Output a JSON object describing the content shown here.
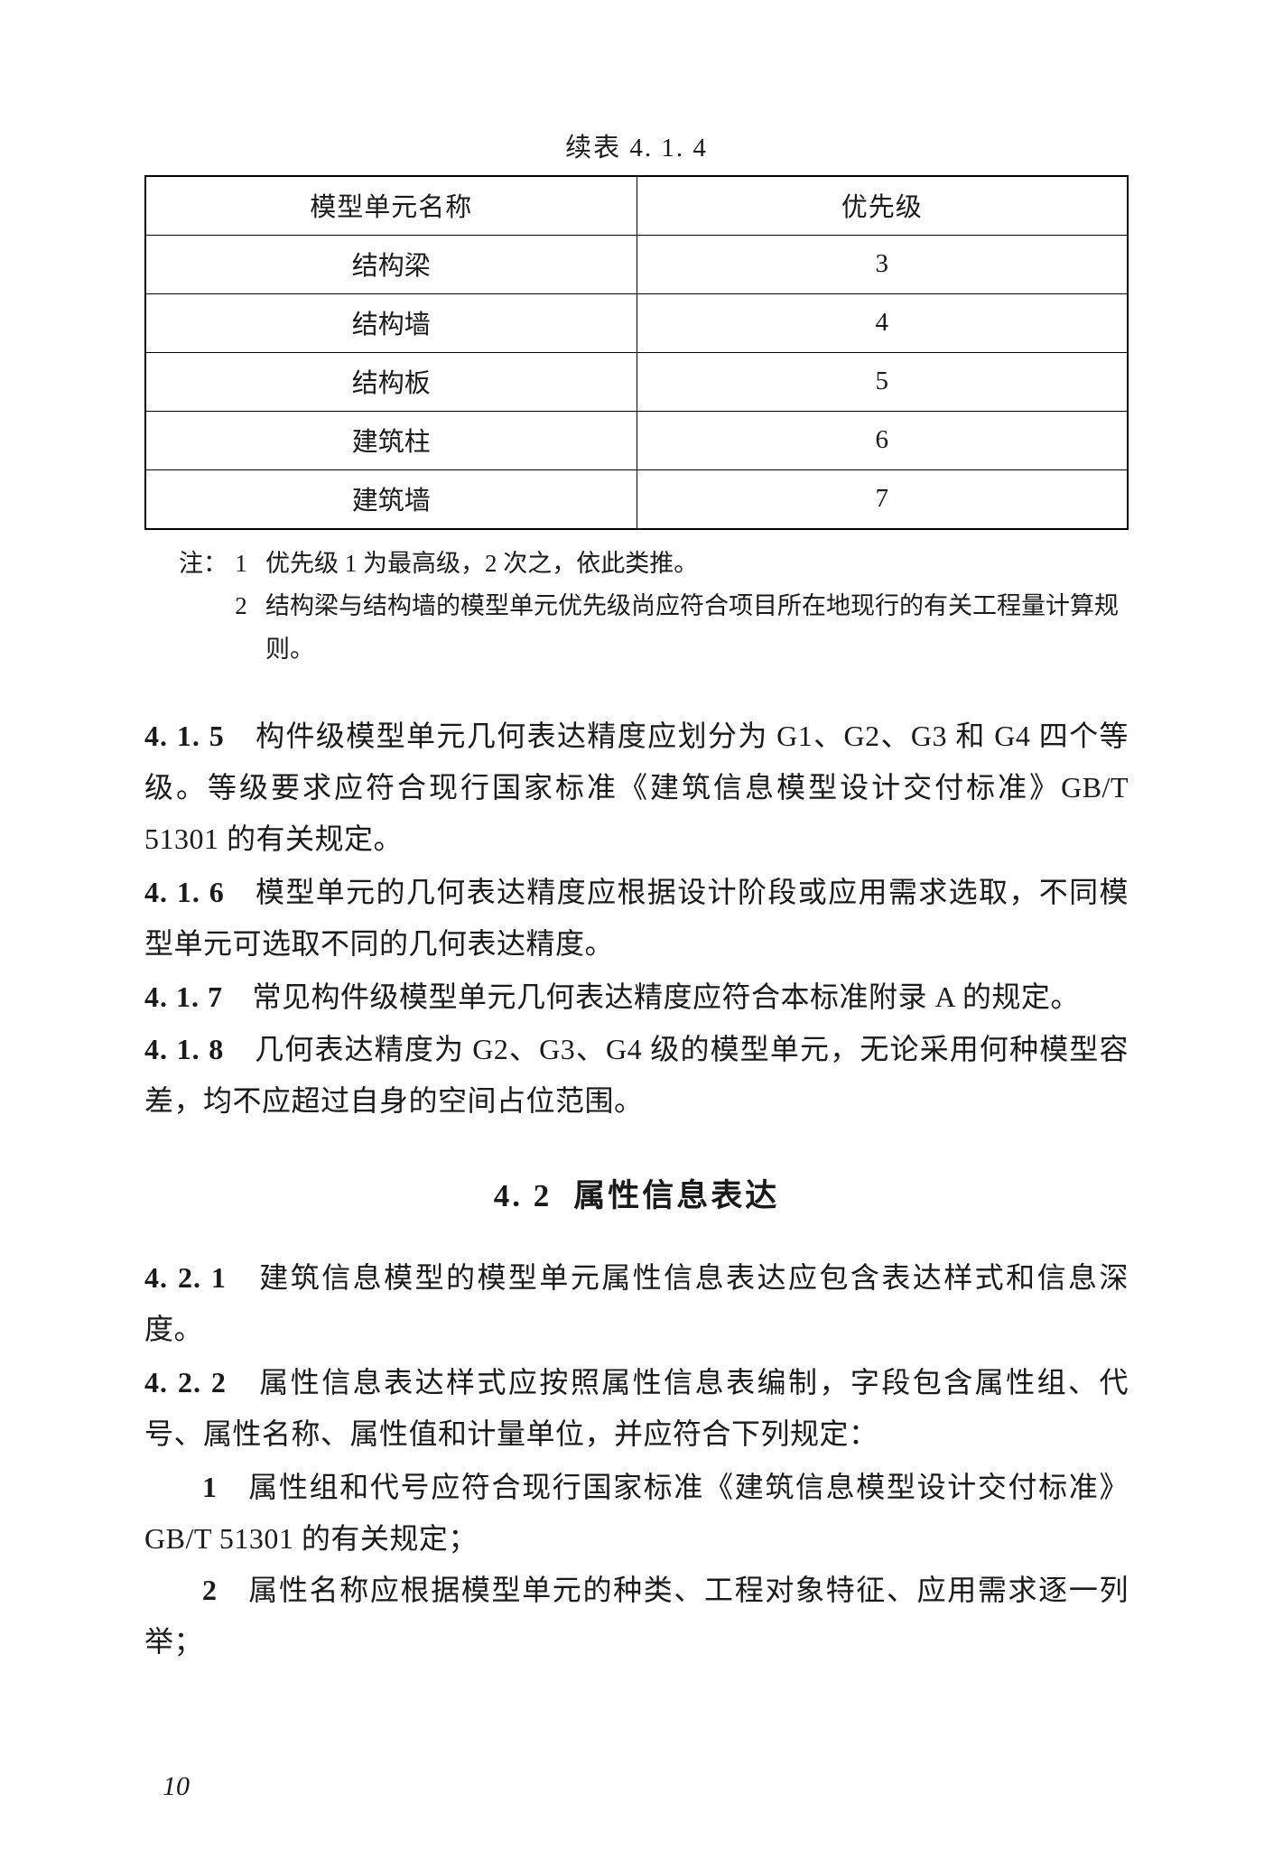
{
  "table_caption": "续表 4. 1. 4",
  "table": {
    "headers": {
      "col1": "模型单元名称",
      "col2": "优先级"
    },
    "rows": [
      {
        "name": "结构梁",
        "priority": "3"
      },
      {
        "name": "结构墙",
        "priority": "4"
      },
      {
        "name": "结构板",
        "priority": "5"
      },
      {
        "name": "建筑柱",
        "priority": "6"
      },
      {
        "name": "建筑墙",
        "priority": "7"
      }
    ],
    "note_label": "注：",
    "notes": [
      {
        "num": "1",
        "text": "优先级 1 为最高级，2 次之，依此类推。"
      },
      {
        "num": "2",
        "text": "结构梁与结构墙的模型单元优先级尚应符合项目所在地现行的有关工程量计算规则。"
      }
    ],
    "note2_line2": "计算规则。"
  },
  "paragraphs": {
    "p415_num": "4. 1. 5",
    "p415_text": "　构件级模型单元几何表达精度应划分为 G1、G2、G3 和 G4 四个等级。等级要求应符合现行国家标准《建筑信息模型设计交付标准》GB/T 51301 的有关规定。",
    "p416_num": "4. 1. 6",
    "p416_text": "　模型单元的几何表达精度应根据设计阶段或应用需求选取，不同模型单元可选取不同的几何表达精度。",
    "p417_num": "4. 1. 7",
    "p417_text": "　常见构件级模型单元几何表达精度应符合本标准附录 A 的规定。",
    "p418_num": "4. 1. 8",
    "p418_text": "　几何表达精度为 G2、G3、G4 级的模型单元，无论采用何种模型容差，均不应超过自身的空间占位范围。"
  },
  "section_heading": {
    "num": "4. 2",
    "title": "属性信息表达"
  },
  "paragraphs2": {
    "p421_num": "4. 2. 1",
    "p421_text": "　建筑信息模型的模型单元属性信息表达应包含表达样式和信息深度。",
    "p422_num": "4. 2. 2",
    "p422_text": "　属性信息表达样式应按照属性信息表编制，字段包含属性组、代号、属性名称、属性值和计量单位，并应符合下列规定：",
    "item1_num": "1",
    "item1_text": "　属性组和代号应符合现行国家标准《建筑信息模型设计交付标准》GB/T 51301 的有关规定；",
    "item2_num": "2",
    "item2_text": "　属性名称应根据模型单元的种类、工程对象特征、应用需求逐一列举；"
  },
  "page_number": "10"
}
